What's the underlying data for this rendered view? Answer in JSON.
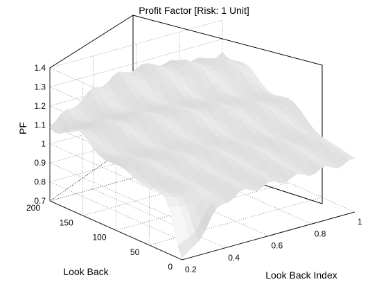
{
  "chart_data": {
    "type": "surface3d",
    "title": "Profit Factor [Risk: 1 Unit]",
    "xlabel": "Look Back Index",
    "ylabel": "Look Back",
    "zlabel": "PF",
    "xlim": [
      0.2,
      1
    ],
    "ylim": [
      0,
      200
    ],
    "zlim": [
      0.7,
      1.4
    ],
    "x_ticks": [
      "0.2",
      "0.4",
      "0.6",
      "0.8",
      "1"
    ],
    "y_ticks": [
      "0",
      "50",
      "100",
      "150",
      "200"
    ],
    "z_ticks": [
      "0.7",
      "0.8",
      "0.9",
      "1",
      "1.1",
      "1.2",
      "1.3",
      "1.4"
    ],
    "grid": true,
    "surface_color": "#e8e8e8",
    "surface_summary": {
      "min_pf": 0.72,
      "min_at": {
        "x": 0.2,
        "y": 5
      },
      "max_pf": 1.32,
      "max_at": {
        "x": 0.55,
        "y": 190
      },
      "pf_at_x_0_2_y_200": 1.1,
      "pf_at_x_1_y_200": 1.25,
      "pf_at_x_1_y_0": 0.97
    }
  }
}
